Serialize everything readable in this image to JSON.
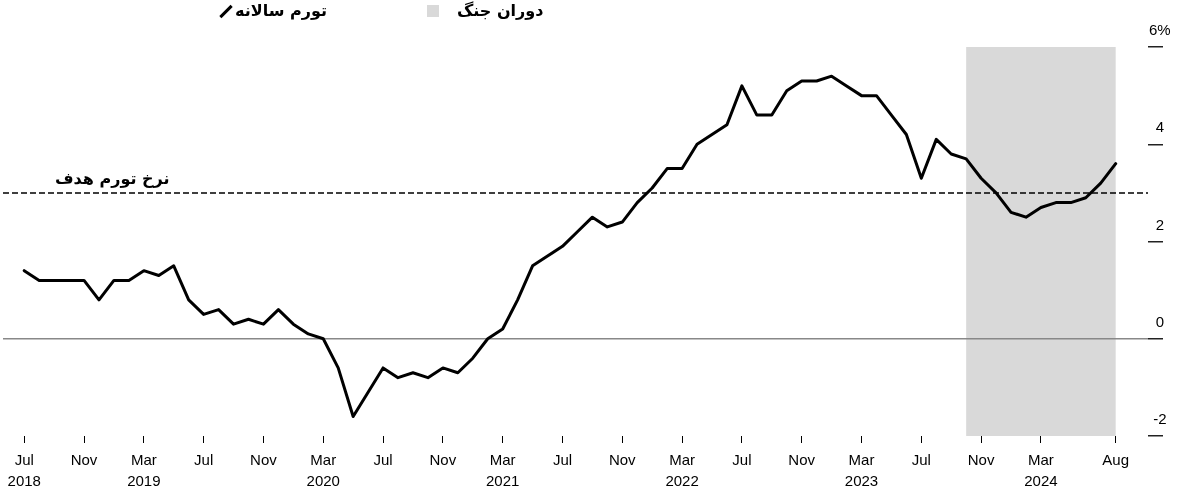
{
  "chart_data": {
    "type": "line",
    "legend": "top left",
    "x": [
      "2018-07",
      "2018-08",
      "2018-09",
      "2018-10",
      "2018-11",
      "2018-12",
      "2019-01",
      "2019-02",
      "2019-03",
      "2019-04",
      "2019-05",
      "2019-06",
      "2019-07",
      "2019-08",
      "2019-09",
      "2019-10",
      "2019-11",
      "2019-12",
      "2020-01",
      "2020-02",
      "2020-03",
      "2020-04",
      "2020-05",
      "2020-06",
      "2020-07",
      "2020-08",
      "2020-09",
      "2020-10",
      "2020-11",
      "2020-12",
      "2021-01",
      "2021-02",
      "2021-03",
      "2021-04",
      "2021-05",
      "2021-06",
      "2021-07",
      "2021-08",
      "2021-09",
      "2021-10",
      "2021-11",
      "2021-12",
      "2022-01",
      "2022-02",
      "2022-03",
      "2022-04",
      "2022-05",
      "2022-06",
      "2022-07",
      "2022-08",
      "2022-09",
      "2022-10",
      "2022-11",
      "2022-12",
      "2023-01",
      "2023-02",
      "2023-03",
      "2023-04",
      "2023-05",
      "2023-06",
      "2023-07",
      "2023-08",
      "2023-09",
      "2023-10",
      "2023-11",
      "2023-12",
      "2024-01",
      "2024-02",
      "2024-03",
      "2024-04",
      "2024-05",
      "2024-06",
      "2024-07",
      "2024-08"
    ],
    "series": [
      {
        "name": "تورم سالانه",
        "color": "#000000",
        "values": [
          1.4,
          1.2,
          1.2,
          1.2,
          1.2,
          0.8,
          1.2,
          1.2,
          1.4,
          1.3,
          1.5,
          0.8,
          0.5,
          0.6,
          0.3,
          0.4,
          0.3,
          0.6,
          0.3,
          0.1,
          0.0,
          -0.6,
          -1.6,
          -1.1,
          -0.6,
          -0.8,
          -0.7,
          -0.8,
          -0.6,
          -0.7,
          -0.4,
          0.0,
          0.2,
          0.8,
          1.5,
          1.7,
          1.9,
          2.2,
          2.5,
          2.3,
          2.4,
          2.8,
          3.1,
          3.5,
          3.5,
          4.0,
          4.2,
          4.4,
          5.2,
          4.6,
          4.6,
          5.1,
          5.3,
          5.3,
          5.4,
          5.2,
          5.0,
          5.0,
          4.6,
          4.2,
          3.3,
          4.1,
          3.8,
          3.7,
          3.3,
          3.0,
          2.6,
          2.5,
          2.7,
          2.8,
          2.8,
          2.9,
          3.2,
          3.6
        ]
      }
    ],
    "xlim": [
      "2018-05-19",
      "2024-10-06"
    ],
    "xticks": [
      {
        "value": "2018-07",
        "label": "Jul 2018"
      },
      {
        "value": "2018-11",
        "label": "Nov"
      },
      {
        "value": "2019-03",
        "label": "Mar 2019"
      },
      {
        "value": "2019-07",
        "label": "Jul"
      },
      {
        "value": "2019-11",
        "label": "Nov"
      },
      {
        "value": "2020-03",
        "label": "Mar 2020"
      },
      {
        "value": "2020-07",
        "label": "Jul"
      },
      {
        "value": "2020-11",
        "label": "Nov"
      },
      {
        "value": "2021-03",
        "label": "Mar 2021"
      },
      {
        "value": "2021-07",
        "label": "Jul"
      },
      {
        "value": "2021-11",
        "label": "Nov"
      },
      {
        "value": "2022-03",
        "label": "Mar 2022"
      },
      {
        "value": "2022-07",
        "label": "Jul"
      },
      {
        "value": "2022-11",
        "label": "Nov"
      },
      {
        "value": "2023-03",
        "label": "Mar 2023"
      },
      {
        "value": "2023-07",
        "label": "Jul"
      },
      {
        "value": "2023-11",
        "label": "Nov"
      },
      {
        "value": "2024-03",
        "label": "Mar 2024"
      },
      {
        "value": "2024-08",
        "label": "Aug"
      }
    ],
    "ylim": [
      -2,
      6
    ],
    "yticks": [
      {
        "value": 6,
        "label": "6%"
      },
      4,
      2,
      0,
      -2
    ],
    "ref_lines": [
      {
        "axis": "y",
        "value": 3,
        "label": "نرخ تورم هدف",
        "color": "#000000",
        "line_style": "dashed"
      },
      {
        "axis": "y",
        "value": 0,
        "color": "#888888"
      }
    ],
    "bands": [
      {
        "axis": "x",
        "from": "2023-10",
        "to": "2024-08",
        "label": "دوران جنگ",
        "color": "#d9d9d9"
      }
    ]
  }
}
